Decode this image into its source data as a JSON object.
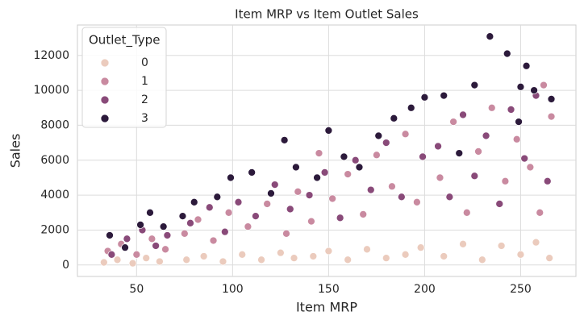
{
  "chart_data": {
    "type": "scatter",
    "title": "Item MRP vs Item Outlet Sales",
    "x_label": "Item MRP",
    "y_label": "Sales",
    "xlim": [
      19.2,
      278.8
    ],
    "ylim": [
      -655,
      13742
    ],
    "xticks": [
      50,
      100,
      150,
      200,
      250
    ],
    "yticks": [
      0,
      2000,
      4000,
      6000,
      8000,
      10000,
      12000
    ],
    "grid": true,
    "legend_title": "Outlet_Type",
    "legend_position": "upper-left",
    "series": [
      {
        "name": "0",
        "color": "#ebcbbd",
        "x": [
          33,
          40,
          48,
          55,
          62,
          76,
          85,
          95,
          105,
          115,
          125,
          132,
          142,
          150,
          160,
          170,
          180,
          190,
          198,
          210,
          220,
          230,
          240,
          250,
          258,
          265
        ],
        "values": [
          150,
          300,
          100,
          400,
          200,
          300,
          500,
          200,
          600,
          300,
          700,
          400,
          500,
          800,
          300,
          900,
          400,
          600,
          1000,
          500,
          1200,
          300,
          1100,
          600,
          1300,
          400
        ]
      },
      {
        "name": "1",
        "color": "#c98aa0",
        "x": [
          35,
          42,
          50,
          58,
          65,
          75,
          82,
          90,
          98,
          108,
          118,
          128,
          134,
          141,
          145,
          152,
          160,
          168,
          175,
          183,
          190,
          196,
          208,
          215,
          222,
          228,
          235,
          242,
          248,
          255,
          262,
          266,
          260
        ],
        "values": [
          800,
          1200,
          600,
          1500,
          900,
          1800,
          2600,
          1400,
          3000,
          2200,
          3500,
          1800,
          4200,
          2500,
          6400,
          3800,
          5200,
          2900,
          6300,
          4500,
          7500,
          3600,
          5000,
          8200,
          3000,
          6500,
          9000,
          4800,
          7200,
          5600,
          10300,
          8500,
          3000
        ]
      },
      {
        "name": "2",
        "color": "#894a79",
        "x": [
          37,
          45,
          53,
          60,
          66,
          78,
          88,
          96,
          103,
          112,
          122,
          130,
          140,
          148,
          156,
          164,
          172,
          180,
          188,
          199,
          207,
          213,
          220,
          226,
          232,
          239,
          245,
          252,
          258,
          264
        ],
        "values": [
          600,
          1500,
          2000,
          1100,
          1700,
          2400,
          3300,
          1900,
          3600,
          2800,
          4600,
          3200,
          4000,
          5300,
          2700,
          6000,
          4300,
          7000,
          3900,
          6200,
          6800,
          3900,
          8600,
          5100,
          7400,
          3500,
          8900,
          6100,
          9700,
          4800
        ]
      },
      {
        "name": "3",
        "color": "#2c1a3b",
        "x": [
          36,
          44,
          52,
          57,
          64,
          74,
          80,
          92,
          99,
          110,
          120,
          127,
          133,
          144,
          150,
          158,
          166,
          176,
          184,
          193,
          200,
          210,
          218,
          226,
          234,
          243,
          249,
          253,
          257,
          266,
          250
        ],
        "values": [
          1700,
          1000,
          2300,
          3000,
          2200,
          2800,
          3600,
          3900,
          5000,
          5300,
          4100,
          7150,
          5600,
          5000,
          7700,
          6200,
          5600,
          7400,
          8400,
          9000,
          9600,
          9700,
          6400,
          10300,
          13087,
          12100,
          8200,
          11400,
          10000,
          9500,
          10200
        ]
      }
    ]
  }
}
